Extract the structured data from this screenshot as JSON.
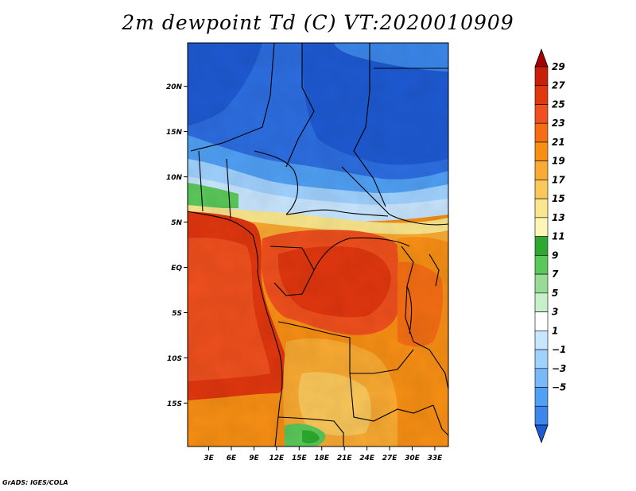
{
  "title": "2m dewpoint Td (C) VT:2020010909",
  "credit": "GrADS: IGES/COLA",
  "map": {
    "lat_labels": [
      "20N",
      "15N",
      "10N",
      "5N",
      "EQ",
      "5S",
      "10S",
      "15S"
    ],
    "lat_values": [
      20,
      15,
      10,
      5,
      0,
      -5,
      -10,
      -15
    ],
    "lon_labels": [
      "3E",
      "6E",
      "9E",
      "12E",
      "15E",
      "18E",
      "21E",
      "24E",
      "27E",
      "30E",
      "33E"
    ],
    "lon_values": [
      3,
      6,
      9,
      12,
      15,
      18,
      21,
      24,
      27,
      30,
      33
    ],
    "lat_range": [
      -19.8,
      24.8
    ],
    "lon_range": [
      0.2,
      34.8
    ],
    "variable": "2m dewpoint",
    "units": "C"
  },
  "legend": {
    "labels": [
      "29",
      "27",
      "25",
      "23",
      "21",
      "19",
      "17",
      "15",
      "13",
      "11",
      "9",
      "7",
      "5",
      "3",
      "1",
      "−1",
      "−3",
      "−5"
    ],
    "colors_top_to_bottom": [
      "#a50000",
      "#c81e0a",
      "#e1370f",
      "#f0501e",
      "#f56e14",
      "#f78f14",
      "#f9aa32",
      "#fac75a",
      "#fae68c",
      "#fff5b4",
      "#2ea82e",
      "#5ac85a",
      "#96dc96",
      "#c8f0c8",
      "#ffffff",
      "#c8e6ff",
      "#a0d2ff",
      "#78b9fa",
      "#50a0f5",
      "#3c87eb",
      "#2d6ee1",
      "#1e5ad2"
    ]
  }
}
